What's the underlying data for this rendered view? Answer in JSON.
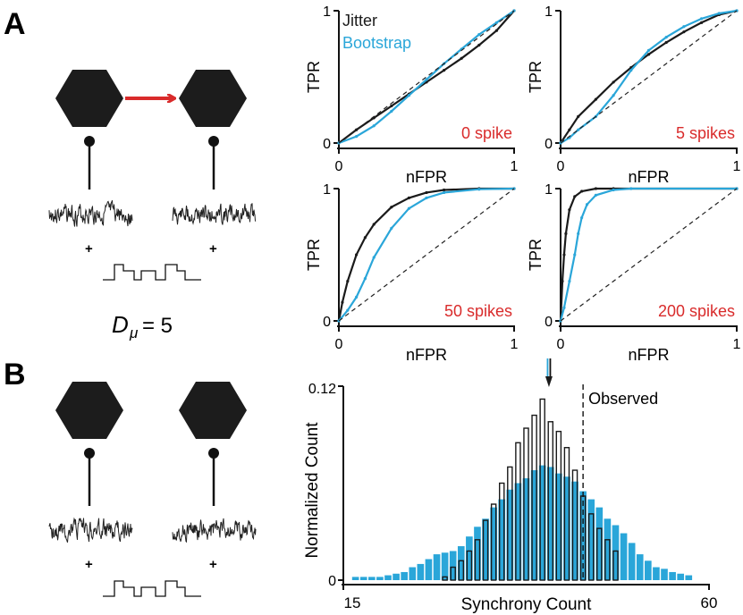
{
  "panels": {
    "a": {
      "label": "A",
      "dmu_symbol": "D",
      "dmu_subscript": "μ",
      "dmu_value": "= 5",
      "plus": "+"
    },
    "b": {
      "label": "B",
      "plus": "+"
    }
  },
  "colors": {
    "jitter": "#1a1a1a",
    "bootstrap": "#2aa6d9",
    "spike_label": "#d92b2b",
    "arrow": "#d92b2b",
    "neuron": "#1c1c1c"
  },
  "chart_data": [
    {
      "type": "line",
      "title": "",
      "annotation": "0 spike",
      "xlabel": "nFPR",
      "ylabel": "TPR",
      "xlim": [
        0,
        1
      ],
      "ylim": [
        0,
        1
      ],
      "x_ticks": [
        "0",
        "1"
      ],
      "y_ticks": [
        "0",
        "1"
      ],
      "legend": [
        "Jitter",
        "Bootstrap"
      ],
      "series": [
        {
          "name": "Jitter",
          "x": [
            0,
            0.1,
            0.2,
            0.3,
            0.4,
            0.5,
            0.6,
            0.7,
            0.8,
            0.9,
            1
          ],
          "y": [
            0,
            0.1,
            0.19,
            0.28,
            0.37,
            0.46,
            0.55,
            0.64,
            0.74,
            0.85,
            1
          ]
        },
        {
          "name": "Bootstrap",
          "x": [
            0,
            0.1,
            0.2,
            0.3,
            0.4,
            0.5,
            0.6,
            0.7,
            0.8,
            0.9,
            1
          ],
          "y": [
            0,
            0.05,
            0.13,
            0.24,
            0.36,
            0.48,
            0.6,
            0.71,
            0.82,
            0.91,
            1
          ]
        },
        {
          "name": "chance",
          "x": [
            0,
            1
          ],
          "y": [
            0,
            1
          ]
        }
      ]
    },
    {
      "type": "line",
      "title": "",
      "annotation": "5 spikes",
      "xlabel": "nFPR",
      "ylabel": "TPR",
      "xlim": [
        0,
        1
      ],
      "ylim": [
        0,
        1
      ],
      "x_ticks": [
        "0",
        "1"
      ],
      "y_ticks": [
        "0",
        "1"
      ],
      "series": [
        {
          "name": "Jitter",
          "x": [
            0,
            0.05,
            0.1,
            0.2,
            0.3,
            0.4,
            0.5,
            0.6,
            0.7,
            0.8,
            0.9,
            1
          ],
          "y": [
            0,
            0.1,
            0.2,
            0.33,
            0.46,
            0.57,
            0.67,
            0.76,
            0.84,
            0.91,
            0.97,
            1
          ]
        },
        {
          "name": "Bootstrap",
          "x": [
            0,
            0.05,
            0.1,
            0.2,
            0.3,
            0.4,
            0.5,
            0.6,
            0.7,
            0.8,
            0.9,
            1
          ],
          "y": [
            0,
            0.04,
            0.1,
            0.2,
            0.36,
            0.55,
            0.7,
            0.8,
            0.88,
            0.94,
            0.98,
            1
          ]
        },
        {
          "name": "chance",
          "x": [
            0,
            1
          ],
          "y": [
            0,
            1
          ]
        }
      ]
    },
    {
      "type": "line",
      "title": "",
      "annotation": "50 spikes",
      "xlabel": "nFPR",
      "ylabel": "TPR",
      "xlim": [
        0,
        1
      ],
      "ylim": [
        0,
        1
      ],
      "x_ticks": [
        "0",
        "1"
      ],
      "y_ticks": [
        "0",
        "1"
      ],
      "series": [
        {
          "name": "Jitter",
          "x": [
            0,
            0.02,
            0.05,
            0.1,
            0.15,
            0.2,
            0.3,
            0.4,
            0.5,
            0.6,
            0.8,
            1
          ],
          "y": [
            0,
            0.14,
            0.3,
            0.5,
            0.63,
            0.73,
            0.86,
            0.93,
            0.97,
            0.99,
            1,
            1
          ]
        },
        {
          "name": "Bootstrap",
          "x": [
            0,
            0.05,
            0.1,
            0.15,
            0.2,
            0.3,
            0.4,
            0.5,
            0.6,
            0.8,
            1
          ],
          "y": [
            0,
            0.08,
            0.18,
            0.32,
            0.48,
            0.7,
            0.85,
            0.93,
            0.97,
            0.995,
            1
          ]
        },
        {
          "name": "chance",
          "x": [
            0,
            1
          ],
          "y": [
            0,
            1
          ]
        }
      ]
    },
    {
      "type": "line",
      "title": "",
      "annotation": "200 spikes",
      "xlabel": "nFPR",
      "ylabel": "TPR",
      "xlim": [
        0,
        1
      ],
      "ylim": [
        0,
        1
      ],
      "x_ticks": [
        "0",
        "1"
      ],
      "y_ticks": [
        "0",
        "1"
      ],
      "series": [
        {
          "name": "Jitter",
          "x": [
            0,
            0.01,
            0.02,
            0.03,
            0.05,
            0.08,
            0.12,
            0.2,
            0.3,
            1
          ],
          "y": [
            0,
            0.3,
            0.5,
            0.66,
            0.84,
            0.94,
            0.98,
            1,
            1,
            1
          ]
        },
        {
          "name": "Bootstrap",
          "x": [
            0,
            0.02,
            0.05,
            0.08,
            0.1,
            0.12,
            0.15,
            0.2,
            0.3,
            0.4,
            1
          ],
          "y": [
            0,
            0.1,
            0.3,
            0.5,
            0.66,
            0.78,
            0.88,
            0.95,
            0.99,
            1,
            1
          ]
        },
        {
          "name": "chance",
          "x": [
            0,
            1
          ],
          "y": [
            0,
            1
          ]
        }
      ]
    },
    {
      "type": "bar",
      "title": "",
      "xlabel": "Synchrony Count",
      "ylabel": "Normalized Count",
      "xlim": [
        15,
        60
      ],
      "ylim": [
        0,
        0.12
      ],
      "x_ticks": [
        "15",
        "60"
      ],
      "y_ticks": [
        "0",
        "0.12"
      ],
      "annotation": "Observed",
      "observed_value": 44.5,
      "arrow_value": 40.3,
      "series": [
        {
          "name": "Bootstrap",
          "x": [
            16.5,
            17.5,
            18.5,
            19.5,
            20.5,
            21.5,
            22.5,
            23.5,
            24.5,
            25.5,
            26.5,
            27.5,
            28.5,
            29.5,
            30.5,
            31.5,
            32.5,
            33.5,
            34.5,
            35.5,
            36.5,
            37.5,
            38.5,
            39.5,
            40.5,
            41.5,
            42.5,
            43.5,
            44.5,
            45.5,
            46.5,
            47.5,
            48.5,
            49.5,
            50.5,
            51.5,
            52.5,
            53.5,
            54.5,
            55.5,
            56.5,
            57.5
          ],
          "values": [
            0.002,
            0.002,
            0.002,
            0.002,
            0.003,
            0.004,
            0.005,
            0.008,
            0.01,
            0.013,
            0.016,
            0.017,
            0.018,
            0.021,
            0.027,
            0.033,
            0.038,
            0.045,
            0.05,
            0.056,
            0.06,
            0.063,
            0.068,
            0.071,
            0.07,
            0.066,
            0.064,
            0.061,
            0.055,
            0.05,
            0.045,
            0.038,
            0.034,
            0.029,
            0.023,
            0.016,
            0.012,
            0.008,
            0.007,
            0.005,
            0.004,
            0.003
          ]
        },
        {
          "name": "Jitter",
          "x": [
            27.5,
            28.5,
            29.5,
            30.5,
            31.5,
            32.5,
            33.5,
            34.5,
            35.5,
            36.5,
            37.5,
            38.5,
            39.5,
            40.5,
            41.5,
            42.5,
            43.5,
            44.5,
            45.5,
            46.5,
            47.5,
            48.5
          ],
          "values": [
            0.002,
            0.008,
            0.012,
            0.018,
            0.025,
            0.037,
            0.047,
            0.06,
            0.07,
            0.085,
            0.094,
            0.102,
            0.112,
            0.098,
            0.092,
            0.082,
            0.068,
            0.052,
            0.041,
            0.032,
            0.025,
            0.018
          ]
        }
      ]
    }
  ]
}
